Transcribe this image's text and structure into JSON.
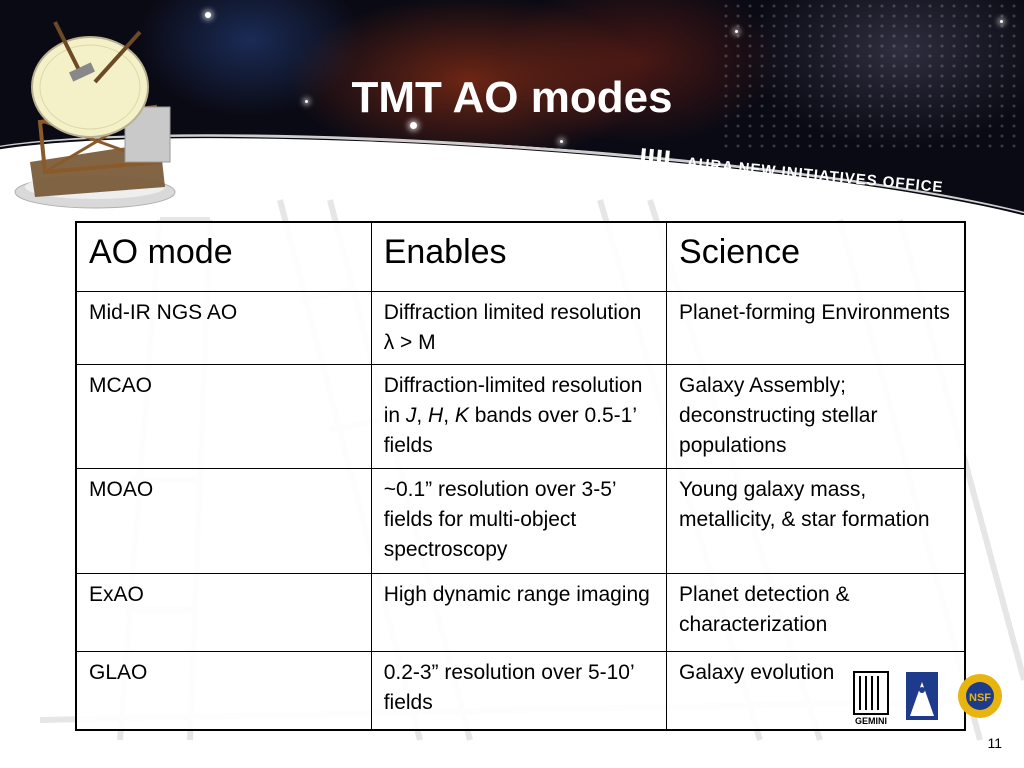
{
  "slide": {
    "title": "TMT AO modes",
    "banner": "AURA NEW INITIATIVES OFFICE",
    "number": "11"
  },
  "table": {
    "headers": [
      "AO mode",
      "Enables",
      "Science"
    ],
    "rows": [
      {
        "mode": "Mid-IR NGS AO",
        "enables_a": "Diffraction limited resolution ",
        "enables_b": "λ > M",
        "science": "Planet-forming Environments"
      },
      {
        "mode": "MCAO",
        "enables_a": "Diffraction-limited resolution in ",
        "enables_j": "J",
        "sep1": ", ",
        "enables_h": "H",
        "sep2": ", ",
        "enables_k": "K",
        "enables_c": " bands over 0.5-1’ fields",
        "science": "Galaxy Assembly; deconstructing stellar populations"
      },
      {
        "mode": "MOAO",
        "enables": "~0.1” resolution over 3-5’ fields for multi-object spectroscopy",
        "science": "Young galaxy mass, metallicity, & star formation"
      },
      {
        "mode": "ExAO",
        "enables": "High dynamic range imaging",
        "science": "Planet detection & characterization"
      },
      {
        "mode": "GLAO",
        "enables": "0.2-3” resolution over 5-10’ fields",
        "science": "Galaxy evolution"
      }
    ]
  },
  "logos": {
    "gemini": "GEMINI",
    "nsf": "NSF",
    "aura_icon": "aura-logo-icon"
  }
}
